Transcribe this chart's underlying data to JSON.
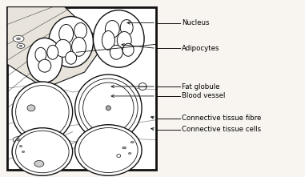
{
  "bg_color": "#f8f5f0",
  "line_color": "#111111",
  "label_fontsize": 6.2,
  "labels": [
    "Nucleus",
    "Adipocytes",
    "Fat globule",
    "Blood vessel",
    "Connective tissue fibre",
    "Connective tissue cells"
  ]
}
